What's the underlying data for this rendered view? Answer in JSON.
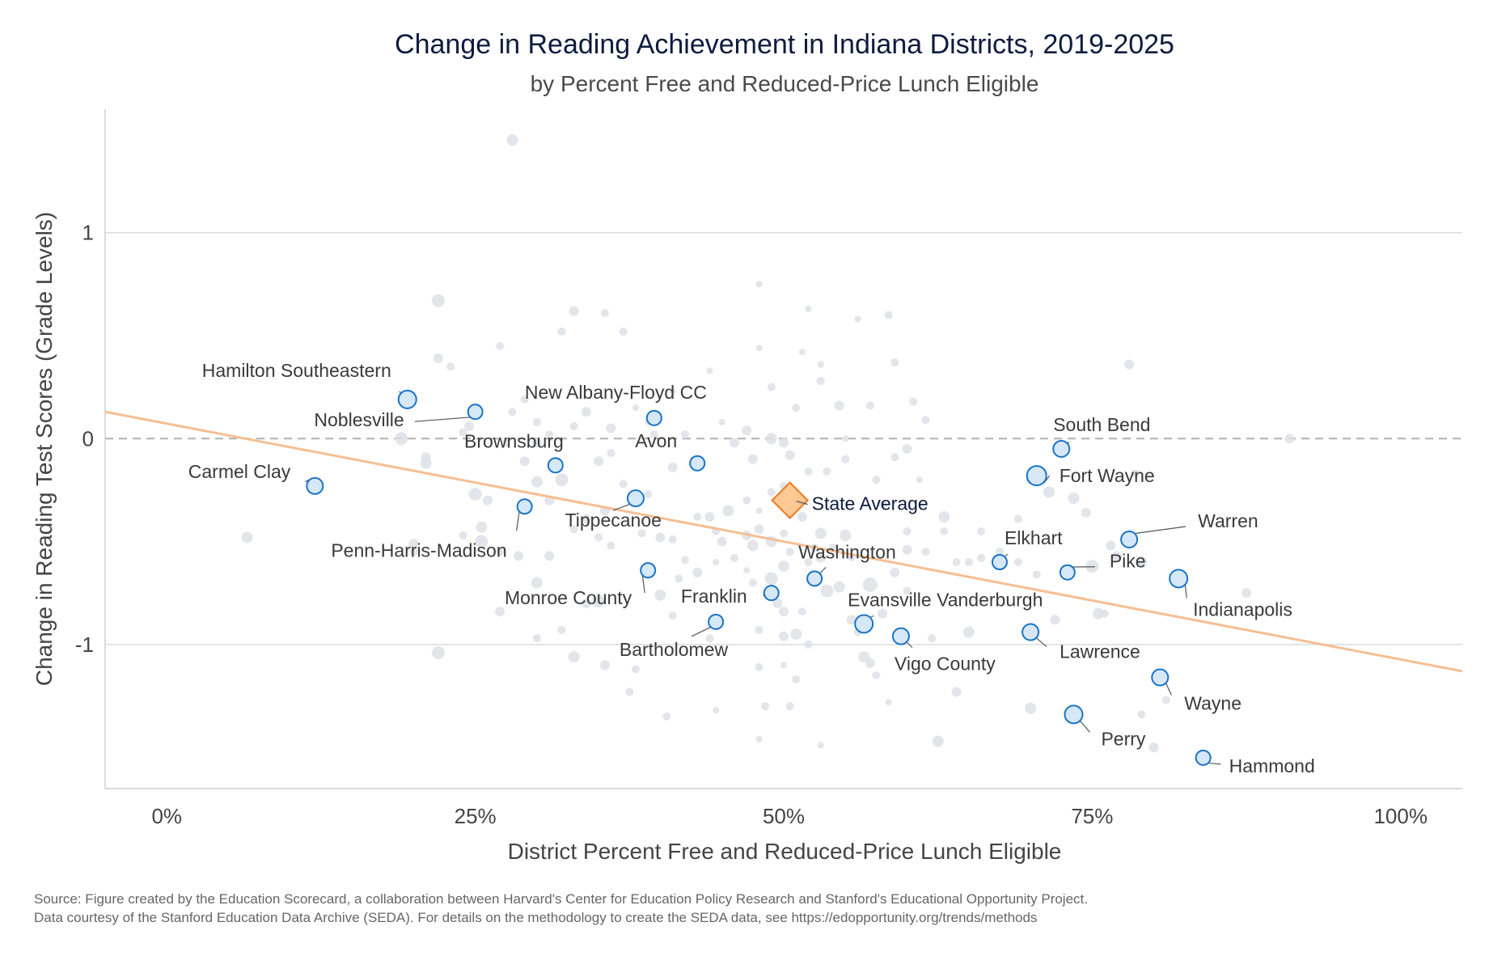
{
  "title": "Change in Reading Achievement in Indiana Districts, 2019-2025",
  "subtitle": "by Percent Free and Reduced-Price Lunch Eligible",
  "source": {
    "line1": "Source: Figure created by the Education Scorecard, a collaboration between Harvard's Center for Education Policy Research and Stanford's Educational Opportunity Project.",
    "line2": "Data courtesy of the Stanford Education Data Archive (SEDA). For details on the methodology to create the SEDA data, see https://edopportunity.org/trends/methods"
  },
  "colors": {
    "highlight_fill": "#d6e8f7",
    "highlight_stroke": "#1a73c8",
    "background_point": "#dde1e6",
    "trend": "#f5bf93",
    "state_fill": "#fcc894",
    "state_stroke": "#ee7a22",
    "grid": "#dcdcdc",
    "zero_line": "#b0b0b0"
  },
  "chart_data": {
    "type": "scatter",
    "xlabel": "District Percent Free and Reduced-Price Lunch Eligible",
    "ylabel": "Change in Reading Test Scores (Grade Levels)",
    "xlim": [
      -0.05,
      1.05
    ],
    "ylim": [
      -1.7,
      1.6
    ],
    "x_ticks": [
      0,
      0.25,
      0.5,
      0.75,
      1.0
    ],
    "x_tick_labels": [
      "0%",
      "25%",
      "50%",
      "75%",
      "100%"
    ],
    "y_ticks": [
      1,
      0,
      -1
    ],
    "y_tick_labels": [
      "1",
      "0",
      "-1"
    ],
    "grid": "horizontal",
    "zero_line": "dashed",
    "trend_line": {
      "x": [
        -0.05,
        1.05
      ],
      "y": [
        0.13,
        -1.13
      ]
    },
    "state_average": {
      "label": "State Average",
      "x": 0.505,
      "y": -0.3
    },
    "highlighted_districts": [
      {
        "name": "Hamilton Southeastern",
        "x": 0.195,
        "y": 0.19,
        "size": 11
      },
      {
        "name": "Noblesville",
        "x": 0.25,
        "y": 0.13,
        "size": 9
      },
      {
        "name": "Carmel Clay",
        "x": 0.12,
        "y": -0.23,
        "size": 10
      },
      {
        "name": "Penn-Harris-Madison",
        "x": 0.29,
        "y": -0.33,
        "size": 9
      },
      {
        "name": "Brownsburg",
        "x": 0.315,
        "y": -0.13,
        "size": 9
      },
      {
        "name": "New Albany-Floyd CC",
        "x": 0.395,
        "y": 0.1,
        "size": 9
      },
      {
        "name": "Avon",
        "x": 0.43,
        "y": -0.12,
        "size": 9
      },
      {
        "name": "Tippecanoe",
        "x": 0.38,
        "y": -0.29,
        "size": 10
      },
      {
        "name": "Monroe County",
        "x": 0.39,
        "y": -0.64,
        "size": 9
      },
      {
        "name": "Franklin",
        "x": 0.49,
        "y": -0.75,
        "size": 9
      },
      {
        "name": "Bartholomew",
        "x": 0.445,
        "y": -0.89,
        "size": 9
      },
      {
        "name": "Washington",
        "x": 0.525,
        "y": -0.68,
        "size": 9
      },
      {
        "name": "Evansville Vanderburgh",
        "x": 0.565,
        "y": -0.9,
        "size": 11
      },
      {
        "name": "Vigo County",
        "x": 0.595,
        "y": -0.96,
        "size": 10
      },
      {
        "name": "South Bend",
        "x": 0.725,
        "y": -0.05,
        "size": 10
      },
      {
        "name": "Fort Wayne",
        "x": 0.705,
        "y": -0.18,
        "size": 12
      },
      {
        "name": "Elkhart",
        "x": 0.675,
        "y": -0.6,
        "size": 9
      },
      {
        "name": "Warren",
        "x": 0.78,
        "y": -0.49,
        "size": 10
      },
      {
        "name": "Pike",
        "x": 0.73,
        "y": -0.65,
        "size": 9
      },
      {
        "name": "Indianapolis",
        "x": 0.82,
        "y": -0.68,
        "size": 11
      },
      {
        "name": "Lawrence",
        "x": 0.7,
        "y": -0.94,
        "size": 10
      },
      {
        "name": "Wayne",
        "x": 0.805,
        "y": -1.16,
        "size": 10
      },
      {
        "name": "Perry",
        "x": 0.735,
        "y": -1.34,
        "size": 11
      },
      {
        "name": "Hammond",
        "x": 0.84,
        "y": -1.55,
        "size": 9
      }
    ],
    "other_districts": [
      [
        0.28,
        1.45,
        7
      ],
      [
        0.22,
        0.67,
        8
      ],
      [
        0.33,
        0.62,
        6
      ],
      [
        0.355,
        0.61,
        5
      ],
      [
        0.48,
        0.75,
        4
      ],
      [
        0.52,
        0.63,
        4
      ],
      [
        0.56,
        0.58,
        4
      ],
      [
        0.585,
        0.6,
        5
      ],
      [
        0.27,
        0.45,
        5
      ],
      [
        0.37,
        0.52,
        5
      ],
      [
        0.32,
        0.52,
        5
      ],
      [
        0.48,
        0.44,
        4
      ],
      [
        0.515,
        0.42,
        4
      ],
      [
        0.53,
        0.36,
        4
      ],
      [
        0.59,
        0.37,
        5
      ],
      [
        0.44,
        0.33,
        4
      ],
      [
        0.78,
        0.36,
        6
      ],
      [
        0.22,
        0.39,
        6
      ],
      [
        0.23,
        0.35,
        5
      ],
      [
        0.53,
        0.28,
        5
      ],
      [
        0.51,
        0.15,
        5
      ],
      [
        0.545,
        0.16,
        6
      ],
      [
        0.57,
        0.16,
        5
      ],
      [
        0.605,
        0.18,
        5
      ],
      [
        0.615,
        0.09,
        5
      ],
      [
        0.49,
        0.25,
        5
      ],
      [
        0.41,
        0.23,
        4
      ],
      [
        0.38,
        0.15,
        4
      ],
      [
        0.39,
        0.08,
        4
      ],
      [
        0.36,
        0.05,
        6
      ],
      [
        0.42,
        0.02,
        5
      ],
      [
        0.45,
        0.08,
        4
      ],
      [
        0.47,
        0.04,
        6
      ],
      [
        0.49,
        0.0,
        7
      ],
      [
        0.5,
        -0.02,
        6
      ],
      [
        0.46,
        -0.02,
        6
      ],
      [
        0.475,
        -0.1,
        6
      ],
      [
        0.505,
        -0.08,
        6
      ],
      [
        0.52,
        -0.16,
        5
      ],
      [
        0.535,
        -0.16,
        5
      ],
      [
        0.55,
        -0.1,
        5
      ],
      [
        0.55,
        0.0,
        4
      ],
      [
        0.6,
        -0.05,
        6
      ],
      [
        0.59,
        -0.09,
        5
      ],
      [
        0.575,
        -0.2,
        5
      ],
      [
        0.61,
        -0.2,
        4
      ],
      [
        0.19,
        0.0,
        8
      ],
      [
        0.21,
        -0.12,
        7
      ],
      [
        0.21,
        -0.09,
        6
      ],
      [
        0.25,
        -0.27,
        8
      ],
      [
        0.26,
        -0.3,
        6
      ],
      [
        0.255,
        -0.43,
        7
      ],
      [
        0.255,
        -0.5,
        8
      ],
      [
        0.2,
        -0.51,
        6
      ],
      [
        0.065,
        -0.48,
        7
      ],
      [
        0.27,
        -0.55,
        5
      ],
      [
        0.285,
        -0.57,
        6
      ],
      [
        0.31,
        -0.57,
        6
      ],
      [
        0.3,
        -0.21,
        7
      ],
      [
        0.32,
        -0.2,
        8
      ],
      [
        0.31,
        -0.3,
        6
      ],
      [
        0.29,
        -0.11,
        6
      ],
      [
        0.28,
        0.13,
        5
      ],
      [
        0.29,
        0.19,
        5
      ],
      [
        0.3,
        0.08,
        5
      ],
      [
        0.31,
        0.02,
        5
      ],
      [
        0.34,
        -0.39,
        6
      ],
      [
        0.355,
        -0.35,
        6
      ],
      [
        0.37,
        -0.22,
        5
      ],
      [
        0.39,
        -0.27,
        5
      ],
      [
        0.4,
        -0.48,
        6
      ],
      [
        0.41,
        -0.49,
        5
      ],
      [
        0.385,
        -0.46,
        5
      ],
      [
        0.42,
        -0.59,
        5
      ],
      [
        0.415,
        -0.68,
        5
      ],
      [
        0.43,
        -0.65,
        6
      ],
      [
        0.4,
        -0.76,
        7
      ],
      [
        0.41,
        -0.86,
        5
      ],
      [
        0.35,
        -0.79,
        8
      ],
      [
        0.34,
        -0.8,
        6
      ],
      [
        0.3,
        -0.7,
        7
      ],
      [
        0.27,
        -0.84,
        6
      ],
      [
        0.3,
        -0.97,
        5
      ],
      [
        0.32,
        -0.93,
        5
      ],
      [
        0.33,
        -1.06,
        7
      ],
      [
        0.22,
        -1.04,
        8
      ],
      [
        0.355,
        -1.1,
        6
      ],
      [
        0.375,
        -1.23,
        5
      ],
      [
        0.38,
        -1.12,
        5
      ],
      [
        0.405,
        -1.35,
        5
      ],
      [
        0.44,
        -0.97,
        5
      ],
      [
        0.445,
        -1.32,
        4
      ],
      [
        0.44,
        -0.38,
        6
      ],
      [
        0.445,
        -0.45,
        5
      ],
      [
        0.45,
        -0.5,
        6
      ],
      [
        0.455,
        -0.35,
        7
      ],
      [
        0.47,
        -0.47,
        6
      ],
      [
        0.475,
        -0.52,
        7
      ],
      [
        0.48,
        -0.44,
        6
      ],
      [
        0.49,
        -0.5,
        7
      ],
      [
        0.5,
        -0.46,
        5
      ],
      [
        0.515,
        -0.38,
        6
      ],
      [
        0.53,
        -0.46,
        7
      ],
      [
        0.53,
        -0.58,
        6
      ],
      [
        0.52,
        -0.6,
        5
      ],
      [
        0.5,
        -0.62,
        7
      ],
      [
        0.49,
        -0.68,
        8
      ],
      [
        0.495,
        -0.8,
        6
      ],
      [
        0.5,
        -0.84,
        6
      ],
      [
        0.51,
        -0.95,
        7
      ],
      [
        0.535,
        -0.74,
        8
      ],
      [
        0.545,
        -0.72,
        7
      ],
      [
        0.555,
        -0.88,
        6
      ],
      [
        0.56,
        -0.94,
        5
      ],
      [
        0.565,
        -1.06,
        7
      ],
      [
        0.57,
        -1.09,
        6
      ],
      [
        0.575,
        -1.15,
        5
      ],
      [
        0.57,
        -0.71,
        9
      ],
      [
        0.58,
        -0.85,
        6
      ],
      [
        0.59,
        -0.65,
        6
      ],
      [
        0.6,
        -0.54,
        6
      ],
      [
        0.615,
        -0.55,
        5
      ],
      [
        0.64,
        -0.6,
        5
      ],
      [
        0.63,
        -0.38,
        7
      ],
      [
        0.65,
        -0.6,
        5
      ],
      [
        0.66,
        -0.58,
        5
      ],
      [
        0.675,
        -0.55,
        5
      ],
      [
        0.69,
        -0.39,
        5
      ],
      [
        0.7,
        -0.2,
        6
      ],
      [
        0.715,
        -0.26,
        7
      ],
      [
        0.705,
        -0.66,
        5
      ],
      [
        0.735,
        -0.29,
        7
      ],
      [
        0.745,
        -0.36,
        6
      ],
      [
        0.75,
        -0.62,
        8
      ],
      [
        0.765,
        -0.52,
        6
      ],
      [
        0.77,
        -0.57,
        6
      ],
      [
        0.79,
        -0.6,
        7
      ],
      [
        0.79,
        -1.34,
        5
      ],
      [
        0.8,
        -1.5,
        6
      ],
      [
        0.81,
        -1.27,
        5
      ],
      [
        0.875,
        -0.75,
        6
      ],
      [
        0.91,
        0.0,
        6
      ],
      [
        0.7,
        -1.31,
        7
      ],
      [
        0.64,
        -1.23,
        6
      ],
      [
        0.625,
        -1.47,
        7
      ],
      [
        0.585,
        -1.28,
        4
      ],
      [
        0.53,
        -1.49,
        4
      ],
      [
        0.505,
        -1.3,
        5
      ],
      [
        0.485,
        -1.3,
        5
      ],
      [
        0.48,
        -1.46,
        4
      ],
      [
        0.51,
        -1.17,
        5
      ],
      [
        0.5,
        -1.1,
        4
      ],
      [
        0.48,
        -1.11,
        5
      ],
      [
        0.52,
        -1.0,
        5
      ],
      [
        0.515,
        -0.84,
        5
      ],
      [
        0.48,
        -0.93,
        5
      ],
      [
        0.5,
        -0.96,
        6
      ],
      [
        0.445,
        -0.6,
        4
      ],
      [
        0.46,
        -0.58,
        5
      ],
      [
        0.475,
        -0.7,
        5
      ],
      [
        0.47,
        -0.64,
        4
      ],
      [
        0.555,
        -0.58,
        4
      ],
      [
        0.6,
        -0.74,
        5
      ],
      [
        0.62,
        -0.97,
        5
      ],
      [
        0.65,
        -0.94,
        7
      ],
      [
        0.66,
        -0.45,
        5
      ],
      [
        0.69,
        -0.6,
        5
      ],
      [
        0.72,
        -0.88,
        6
      ],
      [
        0.755,
        -0.85,
        7
      ],
      [
        0.785,
        -0.17,
        5
      ],
      [
        0.76,
        -0.85,
        5
      ],
      [
        0.6,
        -0.45,
        5
      ],
      [
        0.55,
        -0.47,
        7
      ],
      [
        0.58,
        -0.32,
        5
      ],
      [
        0.54,
        -0.53,
        5
      ],
      [
        0.525,
        -0.53,
        5
      ],
      [
        0.505,
        -0.55,
        5
      ],
      [
        0.47,
        -0.3,
        5
      ],
      [
        0.48,
        -0.35,
        4
      ],
      [
        0.49,
        -0.26,
        5
      ],
      [
        0.5,
        -0.23,
        5
      ],
      [
        0.43,
        -0.38,
        5
      ],
      [
        0.41,
        -0.14,
        6
      ],
      [
        0.395,
        0.02,
        5
      ],
      [
        0.36,
        -0.07,
        5
      ],
      [
        0.35,
        -0.11,
        6
      ],
      [
        0.34,
        0.13,
        6
      ],
      [
        0.33,
        0.06,
        5
      ],
      [
        0.3,
        -0.02,
        6
      ],
      [
        0.275,
        -0.02,
        5
      ],
      [
        0.245,
        0.06,
        6
      ],
      [
        0.24,
        0.03,
        5
      ],
      [
        0.2,
        -0.55,
        5
      ],
      [
        0.24,
        -0.47,
        5
      ],
      [
        0.33,
        -0.44,
        5
      ],
      [
        0.35,
        -0.48,
        5
      ],
      [
        0.36,
        -0.52,
        5
      ],
      [
        0.63,
        -0.45,
        5
      ]
    ]
  }
}
